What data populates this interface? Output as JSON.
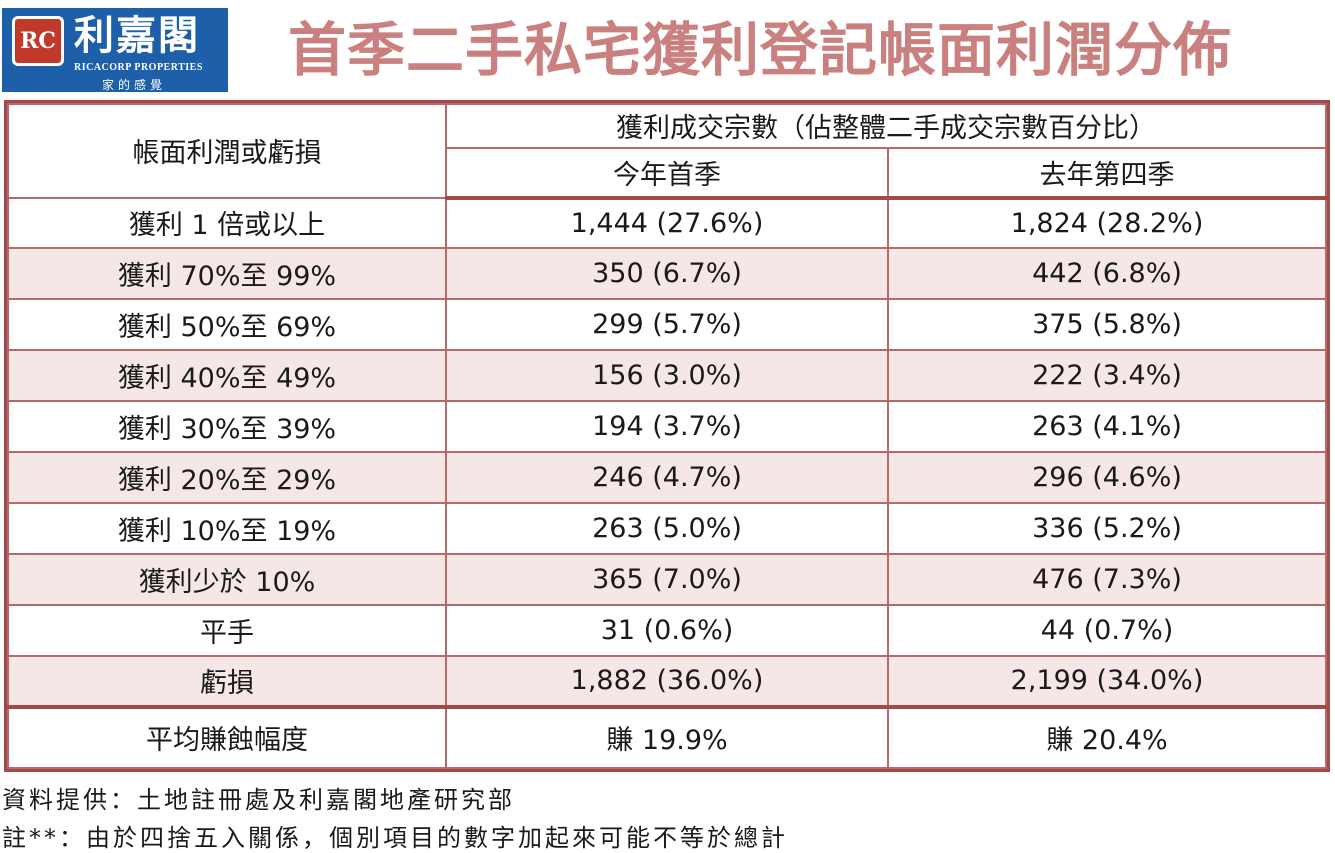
{
  "logo": {
    "mark": "RC",
    "name_cn": "利嘉閣",
    "name_en": "RICACORP PROPERTIES",
    "slogan": "家的感覺"
  },
  "title": "首季二手私宅獲利登記帳面利潤分佈",
  "table": {
    "header_col1": "帳面利潤或虧損",
    "header_group": "獲利成交宗數（佔整體二手成交宗數百分比）",
    "header_q_current": "今年首季",
    "header_q_previous": "去年第四季",
    "rows": [
      {
        "label": "獲利 1 倍或以上",
        "current": "1,444 (27.6%)",
        "previous": "1,824 (28.2%)"
      },
      {
        "label": "獲利 70%至 99%",
        "current": "350 (6.7%)",
        "previous": "442 (6.8%)"
      },
      {
        "label": "獲利 50%至 69%",
        "current": "299 (5.7%)",
        "previous": "375 (5.8%)"
      },
      {
        "label": "獲利 40%至 49%",
        "current": "156 (3.0%)",
        "previous": "222 (3.4%)"
      },
      {
        "label": "獲利 30%至 39%",
        "current": "194 (3.7%)",
        "previous": "263 (4.1%)"
      },
      {
        "label": "獲利 20%至 29%",
        "current": "246 (4.7%)",
        "previous": "296 (4.6%)"
      },
      {
        "label": "獲利 10%至 19%",
        "current": "263 (5.0%)",
        "previous": "336 (5.2%)"
      },
      {
        "label": "獲利少於 10%",
        "current": "365 (7.0%)",
        "previous": "476 (7.3%)"
      },
      {
        "label": "平手",
        "current": "31 (0.6%)",
        "previous": "44 (0.7%)"
      },
      {
        "label": "虧損",
        "current": "1,882 (36.0%)",
        "previous": "2,199 (34.0%)"
      }
    ],
    "summary": {
      "label": "平均賺蝕幅度",
      "current": "賺 19.9%",
      "previous": "賺 20.4%"
    }
  },
  "footer": {
    "source": "資料提供：土地註冊處及利嘉閣地產研究部",
    "note": "註**：由於四捨五入關係，個別項目的數字加起來可能不等於總計"
  },
  "colors": {
    "title": "#c9807f",
    "border": "#a24a4a",
    "alt_row": "#f4e7e6",
    "logo_bg": "#1d5fa8",
    "logo_mark": "#c0392b"
  }
}
